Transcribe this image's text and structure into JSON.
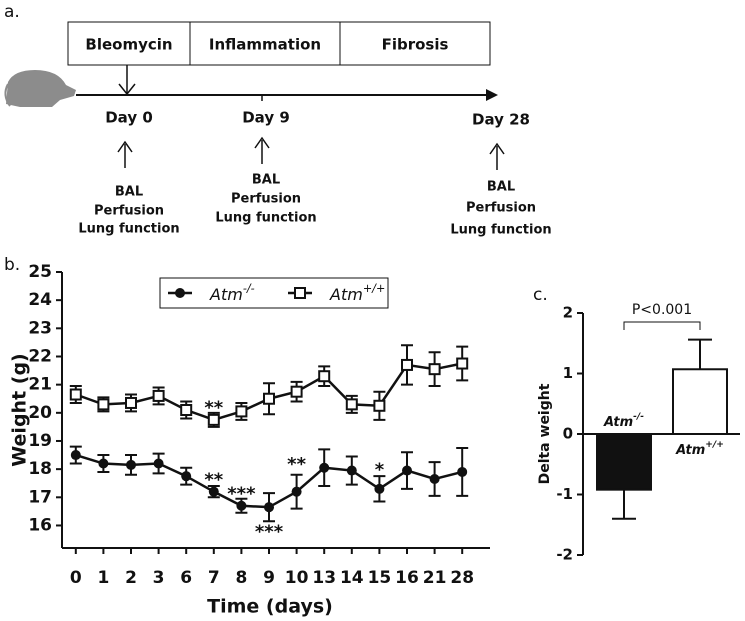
{
  "timeline": {
    "panel_label": "a.",
    "phases": [
      "Bleomycin",
      "Inflammation",
      "Fibrosis"
    ],
    "days": [
      {
        "label": "Day 0",
        "steps": [
          "BAL",
          "Perfusion",
          "Lung function"
        ]
      },
      {
        "label": "Day 9",
        "steps": [
          "BAL",
          "Perfusion",
          "Lung function"
        ]
      },
      {
        "label": "Day 28",
        "steps": [
          "BAL",
          "Perfusion",
          "Lung function"
        ]
      }
    ]
  },
  "chart_data": [
    {
      "type": "line",
      "panel_label": "b.",
      "xlabel": "Time (days)",
      "ylabel": "Weight (g)",
      "categories": [
        "0",
        "1",
        "2",
        "3",
        "6",
        "7",
        "8",
        "9",
        "10",
        "13",
        "14",
        "15",
        "16",
        "21",
        "28"
      ],
      "ylim": [
        15.2,
        25
      ],
      "yticks": [
        16,
        17,
        18,
        19,
        20,
        21,
        22,
        23,
        24,
        25
      ],
      "series": [
        {
          "name": "Atm",
          "name_sup": "-/-",
          "color": "#111111",
          "marker": "circle",
          "values": [
            18.5,
            18.2,
            18.15,
            18.2,
            17.75,
            17.2,
            16.7,
            16.65,
            17.2,
            18.05,
            17.95,
            17.3,
            17.95,
            17.65,
            17.9
          ],
          "errors": [
            0.3,
            0.3,
            0.35,
            0.35,
            0.3,
            0.2,
            0.25,
            0.5,
            0.6,
            0.65,
            0.5,
            0.45,
            0.65,
            0.6,
            0.85
          ]
        },
        {
          "name": "Atm",
          "name_sup": "+/+",
          "color": "#111111",
          "marker": "square",
          "values": [
            20.65,
            20.3,
            20.35,
            20.6,
            20.1,
            19.75,
            20.05,
            20.5,
            20.75,
            21.3,
            20.3,
            20.25,
            21.7,
            21.55,
            21.75
          ],
          "errors": [
            0.3,
            0.25,
            0.3,
            0.3,
            0.3,
            0.25,
            0.3,
            0.55,
            0.35,
            0.35,
            0.3,
            0.5,
            0.7,
            0.6,
            0.6
          ]
        }
      ],
      "annotations": [
        {
          "text": "**",
          "x": "7",
          "y": 20.15
        },
        {
          "text": "**",
          "x": "7",
          "y": 17.6
        },
        {
          "text": "***",
          "x": "8",
          "y": 17.1
        },
        {
          "text": "***",
          "x": "9",
          "y": 15.75
        },
        {
          "text": "**",
          "x": "10",
          "y": 18.15
        },
        {
          "text": "*",
          "x": "15",
          "y": 17.95
        }
      ]
    },
    {
      "type": "bar",
      "panel_label": "c.",
      "ylabel": "Delta weight",
      "categories": [
        "Atm",
        "Atm"
      ],
      "category_sups": [
        "-/-",
        "+/+"
      ],
      "values": [
        -0.92,
        1.07
      ],
      "errors": [
        0.48,
        0.49
      ],
      "colors": [
        "#111111",
        "#ffffff"
      ],
      "ylim": [
        -2,
        2
      ],
      "yticks": [
        -2,
        -1,
        0,
        1,
        2
      ],
      "annotation": "P<0.001"
    }
  ]
}
